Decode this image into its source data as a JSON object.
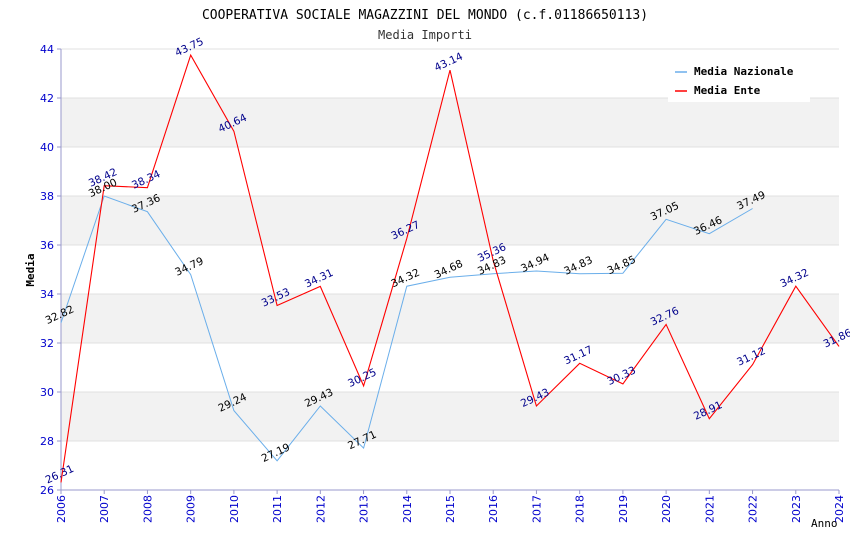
{
  "chart_data": {
    "type": "line",
    "title": "COOPERATIVA SOCIALE MAGAZZINI DEL MONDO (c.f.01186650113)",
    "subtitle": "Media Importi",
    "xlabel": "Anno",
    "ylabel": "Media",
    "ylim": [
      26,
      44
    ],
    "yticks": [
      "26",
      "28",
      "30",
      "32",
      "34",
      "36",
      "38",
      "40",
      "42",
      "44"
    ],
    "x": [
      "2006",
      "2007",
      "2008",
      "2009",
      "2010",
      "2011",
      "2012",
      "2013",
      "2014",
      "2015",
      "2016",
      "2017",
      "2018",
      "2019",
      "2020",
      "2021",
      "2022",
      "2023",
      "2024"
    ],
    "legend_position": "top-right",
    "series": [
      {
        "name": "Media Nazionale",
        "color": "#6aaeea",
        "values": [
          32.82,
          38.0,
          37.36,
          34.79,
          29.24,
          27.19,
          29.43,
          27.71,
          34.32,
          34.68,
          34.83,
          34.94,
          34.83,
          34.85,
          37.05,
          36.46,
          37.49,
          null,
          null
        ],
        "labels": [
          "32.82",
          "38.00",
          "37.36",
          "34.79",
          "29.24",
          "27.19",
          "29.43",
          "27.71",
          "34.32",
          "34.68",
          "34.83",
          "34.94",
          "34.83",
          "34.85",
          "37.05",
          "36.46",
          "37.49",
          "",
          ""
        ]
      },
      {
        "name": "Media Ente",
        "color": "#ff0000",
        "values": [
          26.31,
          38.42,
          38.34,
          43.75,
          40.64,
          33.53,
          34.31,
          30.25,
          36.27,
          43.14,
          35.36,
          29.43,
          31.17,
          30.33,
          32.76,
          28.91,
          31.12,
          34.32,
          31.86
        ],
        "labels": [
          "26.31",
          "38.42",
          "38.34",
          "43.75",
          "40.64",
          "33.53",
          "34.31",
          "30.25",
          "36.27",
          "43.14",
          "35.36",
          "29.43",
          "31.17",
          "30.33",
          "32.76",
          "28.91",
          "31.12",
          "34.32",
          "31.86"
        ]
      }
    ],
    "colors": {
      "band": "#f2f2f2",
      "grid": "#e0e0e0",
      "axis": "#9999cc",
      "tick_text": "#0000cc"
    }
  }
}
